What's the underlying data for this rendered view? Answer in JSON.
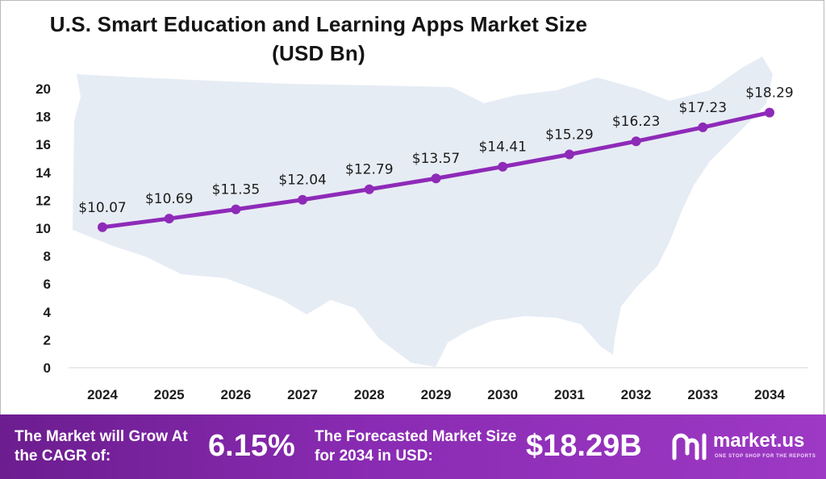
{
  "title_line1": "U.S. Smart Education and Learning Apps Market Size",
  "title_line2": "(USD Bn)",
  "footer": {
    "cagr_label": "The Market will Grow At the CAGR of:",
    "cagr_value": "6.15%",
    "forecast_label": "The Forecasted Market Size for 2034 in USD:",
    "forecast_value": "$18.29B",
    "logo_name": "market.us",
    "logo_tagline": "ONE STOP SHOP FOR THE REPORTS"
  },
  "colors": {
    "line": "#8e2ab8",
    "banner": "#8a2bb3",
    "map": "#e6ecf4"
  },
  "chart_data": {
    "type": "line",
    "title": "U.S. Smart Education and Learning Apps Market Size (USD Bn)",
    "xlabel": "",
    "ylabel": "",
    "categories": [
      "2024",
      "2025",
      "2026",
      "2027",
      "2028",
      "2029",
      "2030",
      "2031",
      "2032",
      "2033",
      "2034"
    ],
    "values": [
      10.07,
      10.69,
      11.35,
      12.04,
      12.79,
      13.57,
      14.41,
      15.29,
      16.23,
      17.23,
      18.29
    ],
    "data_labels": [
      "$10.07",
      "$10.69",
      "$11.35",
      "$12.04",
      "$12.79",
      "$13.57",
      "$14.41",
      "$15.29",
      "$16.23",
      "$17.23",
      "$18.29"
    ],
    "yticks": [
      "0",
      "2",
      "4",
      "6",
      "8",
      "10",
      "12",
      "14",
      "16",
      "18",
      "20"
    ],
    "ylim": [
      0,
      20
    ],
    "grid": false,
    "legend": "none"
  }
}
